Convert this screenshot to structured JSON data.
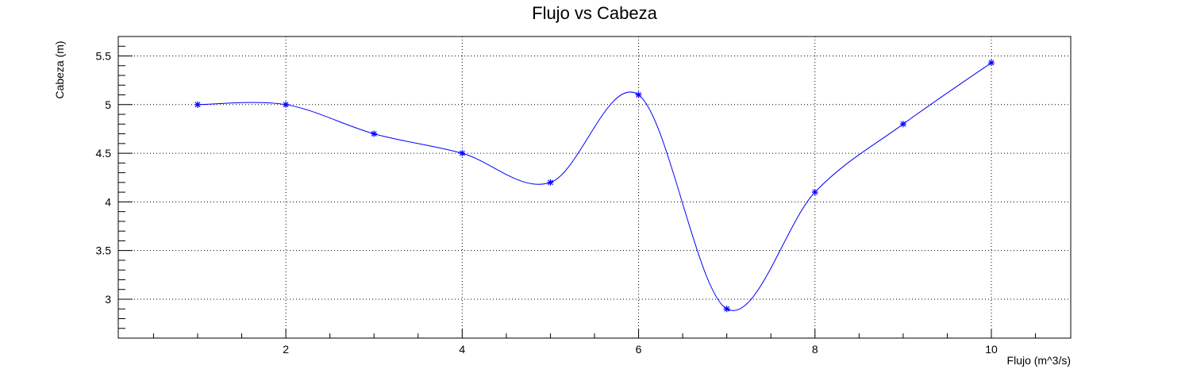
{
  "chart_data": {
    "type": "line",
    "title": "Flujo vs Cabeza",
    "xlabel": "Flujo (m^3/s)",
    "ylabel": "Cabeza (m)",
    "xlim": [
      0.1,
      10.9
    ],
    "ylim": [
      2.6,
      5.7
    ],
    "x_ticks": [
      2,
      4,
      6,
      8,
      10
    ],
    "y_ticks": [
      3,
      3.5,
      4,
      4.5,
      5,
      5.5
    ],
    "x_tick_labels": [
      "2",
      "4",
      "6",
      "8",
      "10"
    ],
    "y_tick_labels": [
      "3",
      "3.5",
      "4",
      "4.5",
      "5",
      "5.5"
    ],
    "grid": true,
    "legend": "none",
    "smooth": true,
    "marker": "asterisk",
    "color": "#0000ff",
    "series": [
      {
        "x": [
          1,
          2,
          3,
          4,
          5,
          6,
          7,
          8,
          9,
          10
        ],
        "y": [
          5.0,
          5.0,
          4.7,
          4.5,
          4.2,
          5.1,
          2.9,
          4.1,
          4.8,
          5.43
        ]
      }
    ]
  }
}
